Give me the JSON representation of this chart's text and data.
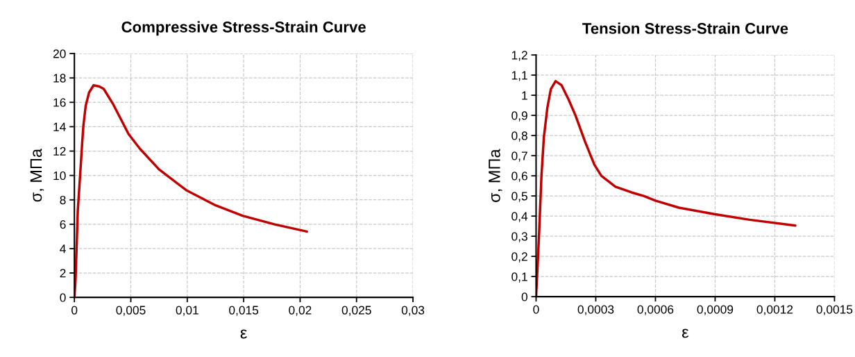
{
  "chart_data": [
    {
      "type": "line",
      "title": "Compressive Stress-Strain Curve",
      "xlabel": "ε",
      "ylabel": "σ, МПа",
      "series": [
        {
          "color": "#c00000",
          "x": [
            0,
            0.0001,
            0.0002,
            0.0003,
            0.0005,
            0.0007,
            0.0008,
            0.001,
            0.0013,
            0.0017,
            0.0022,
            0.0026,
            0.0034,
            0.0048,
            0.0058,
            0.0075,
            0.0099,
            0.0124,
            0.0149,
            0.0177,
            0.0206
          ],
          "values": [
            0,
            1.4,
            4.2,
            7.1,
            9.9,
            12.8,
            14.1,
            15.7,
            16.8,
            17.4,
            17.3,
            17.1,
            15.9,
            13.4,
            12.2,
            10.5,
            8.8,
            7.6,
            6.7,
            6.0,
            5.4
          ]
        }
      ],
      "xlim": [
        0,
        0.03
      ],
      "xticks": [
        0,
        {
          "value": 0.005,
          "label": "0,005"
        },
        {
          "value": 0.01,
          "label": "0,01"
        },
        {
          "value": 0.015,
          "label": "0,015"
        },
        {
          "value": 0.02,
          "label": "0,02"
        },
        {
          "value": 0.025,
          "label": "0,025"
        },
        {
          "value": 0.03,
          "label": "0,03"
        }
      ],
      "ylim": [
        0,
        20
      ],
      "yticks": [
        0,
        2,
        4,
        6,
        8,
        10,
        12,
        14,
        16,
        18,
        20
      ],
      "grid": true,
      "line_style": "solid",
      "marker": "none"
    },
    {
      "type": "line",
      "title": "Tension Stress-Strain Curve",
      "xlabel": "ε",
      "ylabel": "σ, МПа",
      "series": [
        {
          "color": "#c00000",
          "x": [
            0,
            7e-06,
            1.5e-05,
            2.7e-05,
            3.9e-05,
            5.7e-05,
            7.4e-05,
            9.8e-05,
            0.000128,
            0.000163,
            0.000198,
            0.000246,
            0.000293,
            0.000328,
            0.000399,
            0.000482,
            0.000541,
            0.0006,
            0.000718,
            0.000895,
            0.001073,
            0.001303
          ],
          "values": [
            0,
            0.14,
            0.31,
            0.6,
            0.79,
            0.94,
            1.03,
            1.07,
            1.05,
            0.98,
            0.9,
            0.77,
            0.655,
            0.6,
            0.546,
            0.517,
            0.5,
            0.477,
            0.442,
            0.41,
            0.382,
            0.353
          ]
        }
      ],
      "xlim": [
        0,
        0.0015
      ],
      "xticks": [
        0,
        {
          "value": 0.0003,
          "label": "0,0003"
        },
        {
          "value": 0.0006,
          "label": "0,0006"
        },
        {
          "value": 0.0009,
          "label": "0,0009"
        },
        {
          "value": 0.0012,
          "label": "0,0012"
        },
        {
          "value": 0.0015,
          "label": "0,0015"
        }
      ],
      "ylim": [
        0,
        1.2
      ],
      "yticks": [
        0,
        {
          "value": 0.1,
          "label": "0,1"
        },
        {
          "value": 0.2,
          "label": "0,2"
        },
        {
          "value": 0.3,
          "label": "0,3"
        },
        {
          "value": 0.4,
          "label": "0,4"
        },
        {
          "value": 0.5,
          "label": "0,5"
        },
        {
          "value": 0.6,
          "label": "0,6"
        },
        {
          "value": 0.7,
          "label": "0,7"
        },
        {
          "value": 0.8,
          "label": "0,8"
        },
        {
          "value": 0.9,
          "label": "0,9"
        },
        {
          "value": 1,
          "label": "1"
        },
        {
          "value": 1.1,
          "label": "1,1"
        },
        {
          "value": 1.2,
          "label": "1,2"
        }
      ],
      "grid": true,
      "line_style": "solid",
      "marker": "none"
    }
  ]
}
